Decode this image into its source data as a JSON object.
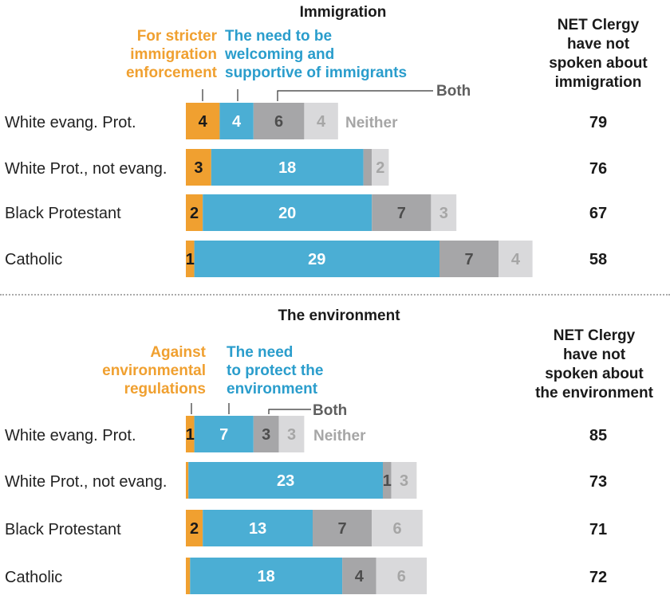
{
  "colors": {
    "stricter": "#f0a030",
    "welcoming": "#4baed4",
    "both": "#a6a6a8",
    "neither": "#d9d9db",
    "label_dark": "#1a1a1a",
    "label_light": "#ffffff",
    "label_both": "#4d4d4d",
    "label_neither": "#a6a6a6"
  },
  "chart_data": [
    {
      "type": "bar",
      "title": "Immigration",
      "categories": [
        "White evang. Prot.",
        "White Prot., not evang.",
        "Black Protestant",
        "Catholic"
      ],
      "series": [
        {
          "name": "For stricter immigration enforcement",
          "values": [
            4,
            3,
            2,
            1
          ]
        },
        {
          "name": "The need to be welcoming and supportive of immigrants",
          "values": [
            4,
            18,
            20,
            29
          ]
        },
        {
          "name": "Both",
          "values": [
            6,
            1,
            7,
            7
          ]
        },
        {
          "name": "Neither",
          "values": [
            4,
            2,
            3,
            4
          ]
        }
      ],
      "segment_labels": [
        [
          "4",
          "4",
          "6",
          "4"
        ],
        [
          "3",
          "18",
          "",
          "2"
        ],
        [
          "2",
          "20",
          "7",
          "3"
        ],
        [
          "1",
          "29",
          "7",
          "4"
        ]
      ],
      "net_header": "NET Clergy have not spoken about immigration",
      "net_values": [
        79,
        76,
        67,
        58
      ]
    },
    {
      "type": "bar",
      "title": "The environment",
      "categories": [
        "White evang. Prot.",
        "White Prot., not evang.",
        "Black Protestant",
        "Catholic"
      ],
      "series": [
        {
          "name": "Against environmental regulations",
          "values": [
            1,
            0.3,
            2,
            0.5
          ]
        },
        {
          "name": "The need to protect the environment",
          "values": [
            7,
            23,
            13,
            18
          ]
        },
        {
          "name": "Both",
          "values": [
            3,
            1,
            7,
            4
          ]
        },
        {
          "name": "Neither",
          "values": [
            3,
            3,
            6,
            6
          ]
        }
      ],
      "segment_labels": [
        [
          "1",
          "7",
          "3",
          "3"
        ],
        [
          "",
          "23",
          "1",
          "3"
        ],
        [
          "2",
          "13",
          "7",
          "6"
        ],
        [
          "",
          "18",
          "4",
          "6"
        ]
      ],
      "net_header": "NET Clergy have not spoken about the environment",
      "net_values": [
        85,
        73,
        71,
        72
      ]
    }
  ],
  "labels": {
    "immigration": {
      "stricter_lines": [
        "For stricter",
        "immigration",
        "enforcement"
      ],
      "welcoming_lines": [
        "The need to be",
        "welcoming and",
        "supportive of immigrants"
      ],
      "both": "Both",
      "neither": "Neither",
      "net_lines": [
        "NET Clergy",
        "have not",
        "spoken about",
        "immigration"
      ]
    },
    "environment": {
      "against_lines": [
        "Against",
        "environmental",
        "regulations"
      ],
      "protect_lines": [
        "The need",
        "to protect the",
        "environment"
      ],
      "both": "Both",
      "neither": "Neither",
      "net_lines": [
        "NET Clergy",
        "have not",
        "spoken about",
        "the environment"
      ]
    }
  }
}
